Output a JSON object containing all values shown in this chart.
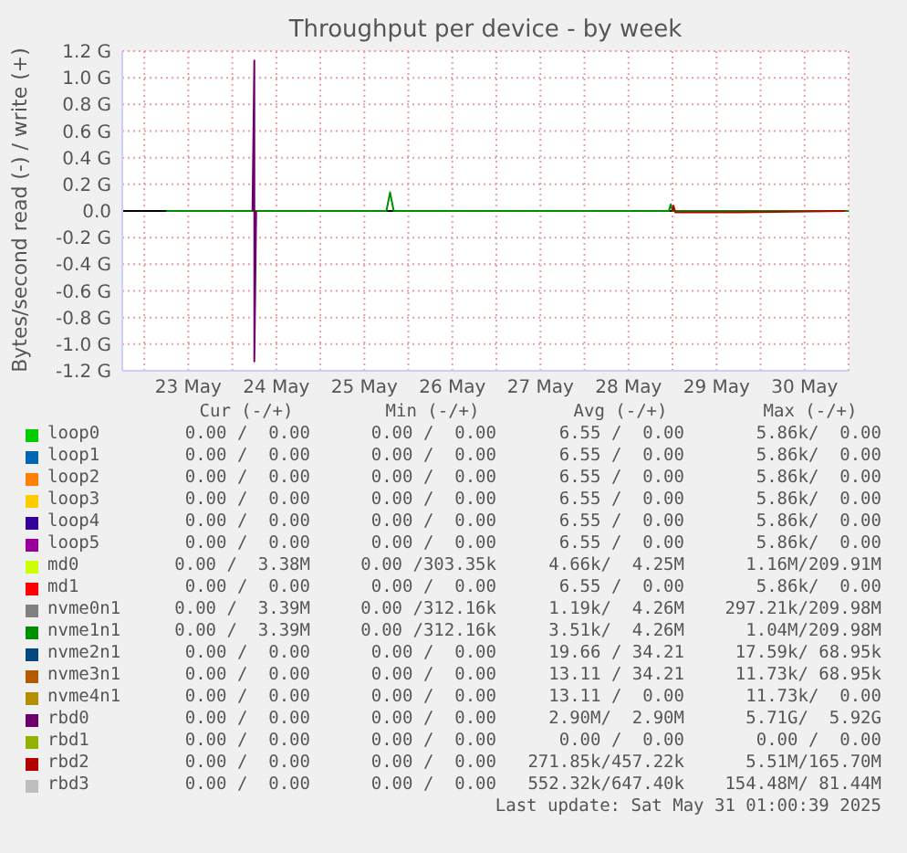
{
  "chart_data": {
    "type": "line",
    "title": "Throughput per device - by week",
    "ylabel": "Bytes/second read (-) / write (+)",
    "xlim": [
      "2025-05-22T18:00",
      "2025-05-31T00:00"
    ],
    "xticks": [
      {
        "value": "2025-05-23T00:00",
        "label": null
      },
      {
        "value": "2025-05-23T12:00",
        "label": "23 May"
      },
      {
        "value": "2025-05-24T00:00",
        "label": null
      },
      {
        "value": "2025-05-24T12:00",
        "label": "24 May"
      },
      {
        "value": "2025-05-25T00:00",
        "label": null
      },
      {
        "value": "2025-05-25T12:00",
        "label": "25 May"
      },
      {
        "value": "2025-05-26T00:00",
        "label": null
      },
      {
        "value": "2025-05-26T12:00",
        "label": "26 May"
      },
      {
        "value": "2025-05-27T00:00",
        "label": null
      },
      {
        "value": "2025-05-27T12:00",
        "label": "27 May"
      },
      {
        "value": "2025-05-28T00:00",
        "label": null
      },
      {
        "value": "2025-05-28T12:00",
        "label": "28 May"
      },
      {
        "value": "2025-05-29T00:00",
        "label": null
      },
      {
        "value": "2025-05-29T12:00",
        "label": "29 May"
      },
      {
        "value": "2025-05-30T00:00",
        "label": null
      },
      {
        "value": "2025-05-30T12:00",
        "label": "30 May"
      },
      {
        "value": "2025-05-31T00:00",
        "label": null
      }
    ],
    "ylim": [
      -1.2,
      1.2
    ],
    "yticks": [
      {
        "value": -1.2,
        "label": "-1.2 G"
      },
      {
        "value": -1.0,
        "label": "-1.0 G"
      },
      {
        "value": -0.8,
        "label": "-0.8 G"
      },
      {
        "value": -0.6,
        "label": "-0.6 G"
      },
      {
        "value": -0.4,
        "label": "-0.4 G"
      },
      {
        "value": -0.2,
        "label": "-0.2 G"
      },
      {
        "value": 0,
        "label": "0.0"
      },
      {
        "value": 0.2,
        "label": "0.2 G"
      },
      {
        "value": 0.4,
        "label": "0.4 G"
      },
      {
        "value": 0.6,
        "label": "0.6 G"
      },
      {
        "value": 0.8,
        "label": "0.8 G"
      },
      {
        "value": 1.0,
        "label": "1.0 G"
      },
      {
        "value": 1.2,
        "label": "1.2 G"
      }
    ],
    "grid": true,
    "legend": "bottom",
    "marker": "none",
    "line_style": "solid",
    "ref_lines": [
      {
        "axis": "y",
        "value": 0,
        "label": null,
        "color": "#000000"
      }
    ],
    "series": [
      {
        "name": "loop0",
        "color": "#00cc00"
      },
      {
        "name": "loop1",
        "color": "#0066b3"
      },
      {
        "name": "loop2",
        "color": "#ff8000"
      },
      {
        "name": "loop3",
        "color": "#ffcc00"
      },
      {
        "name": "loop4",
        "color": "#330099"
      },
      {
        "name": "loop5",
        "color": "#990099"
      },
      {
        "name": "md0",
        "color": "#ccff00"
      },
      {
        "name": "md1",
        "color": "#ff0000"
      },
      {
        "name": "nvme0n1",
        "color": "#808080"
      },
      {
        "name": "nvme1n1",
        "color": "#008f00",
        "x": [
          "2025-05-23T06:00",
          "2025-05-25T18:00",
          "2025-05-25T19:00",
          "2025-05-25T20:00",
          "2025-05-28T23:00",
          "2025-05-28T23:30",
          "2025-05-29T00:00",
          "2025-05-31T00:00"
        ],
        "values": [
          0,
          0,
          0.14,
          0,
          0,
          0.05,
          0,
          0
        ]
      },
      {
        "name": "nvme2n1",
        "color": "#00487d"
      },
      {
        "name": "nvme3n1",
        "color": "#b35a00"
      },
      {
        "name": "nvme4n1",
        "color": "#b38f00"
      },
      {
        "name": "rbd0",
        "color": "#6b006b",
        "x": [
          "2025-05-24T05:30",
          "2025-05-24T06:00",
          "2025-05-24T06:00",
          "2025-05-24T06:30"
        ],
        "values": [
          0,
          1.13,
          -1.13,
          0
        ]
      },
      {
        "name": "rbd1",
        "color": "#8fb300"
      },
      {
        "name": "rbd2",
        "color": "#b30000",
        "x": [
          "2025-05-29T00:00",
          "2025-05-29T00:15",
          "2025-05-29T00:45",
          "2025-05-29T18:00",
          "2025-05-30T23:00"
        ],
        "values": [
          0,
          0.04,
          -0.01,
          -0.01,
          0
        ]
      },
      {
        "name": "rbd3",
        "color": "#bebebe"
      }
    ],
    "annotations": [
      "Cur (-/+)",
      "Min (-/+)",
      "Avg (-/+)",
      "Max (-/+)",
      "0.00 /  0.00",
      "0.00 /  0.00",
      "6.55 /  0.00",
      "5.86k/  0.00",
      "0.00 /  0.00",
      "0.00 /  0.00",
      "6.55 /  0.00",
      "5.86k/  0.00",
      "0.00 /  0.00",
      "0.00 /  0.00",
      "6.55 /  0.00",
      "5.86k/  0.00",
      "0.00 /  0.00",
      "0.00 /  0.00",
      "6.55 /  0.00",
      "5.86k/  0.00",
      "0.00 /  0.00",
      "0.00 /  0.00",
      "6.55 /  0.00",
      "5.86k/  0.00",
      "0.00 /  0.00",
      "0.00 /  0.00",
      "6.55 /  0.00",
      "5.86k/  0.00",
      "0.00 /  3.38M",
      "0.00 /303.35k",
      "4.66k/  4.25M",
      "1.16M/209.91M",
      "0.00 /  0.00",
      "0.00 /  0.00",
      "6.55 /  0.00",
      "5.86k/  0.00",
      "0.00 /  3.39M",
      "0.00 /312.16k",
      "1.19k/  4.26M",
      "297.21k/209.98M",
      "0.00 /  3.39M",
      "0.00 /312.16k",
      "3.51k/  4.26M",
      "1.04M/209.98M",
      "0.00 /  0.00",
      "0.00 /  0.00",
      "19.66 / 34.21",
      "17.59k/ 68.95k",
      "0.00 /  0.00",
      "0.00 /  0.00",
      "13.11 / 34.21",
      "11.73k/ 68.95k",
      "0.00 /  0.00",
      "0.00 /  0.00",
      "13.11 /  0.00",
      "11.73k/  0.00",
      "0.00 /  0.00",
      "0.00 /  0.00",
      "2.90M/  2.90M",
      "5.71G/  5.92G",
      "0.00 /  0.00",
      "0.00 /  0.00",
      "0.00 /  0.00",
      "0.00 /  0.00",
      "0.00 /  0.00",
      "0.00 /  0.00",
      "271.85k/457.22k",
      "5.51M/165.70M",
      "0.00 /  0.00",
      "0.00 /  0.00",
      "552.32k/647.40k",
      "154.48M/ 81.44M",
      "Last update: Sat May 31 01:00:39 2025"
    ]
  }
}
